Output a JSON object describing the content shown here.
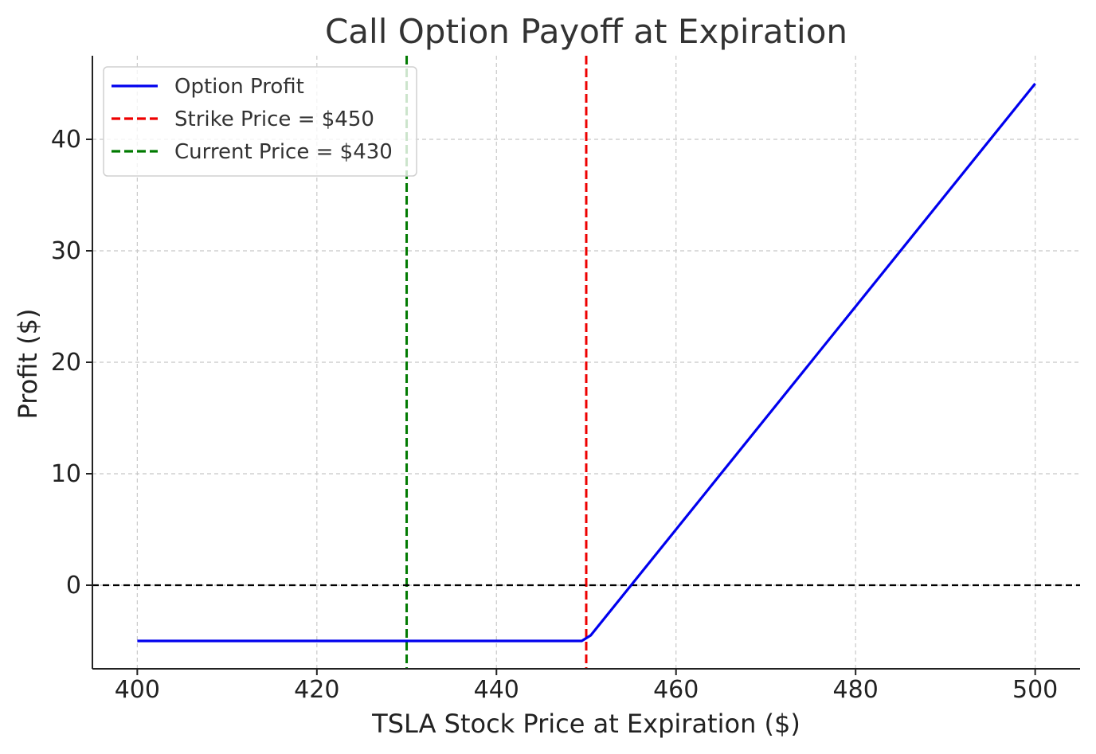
{
  "chart_data": {
    "type": "line",
    "title": "Call Option Payoff at Expiration",
    "xlabel": "TSLA Stock Price at Expiration ($)",
    "ylabel": "Profit ($)",
    "xlim": [
      395,
      505
    ],
    "ylim": [
      -7.5,
      47.5
    ],
    "xticks": [
      400,
      420,
      440,
      460,
      480,
      500
    ],
    "yticks": [
      0,
      10,
      20,
      30,
      40
    ],
    "grid": true,
    "legend_position": "top-left",
    "series": [
      {
        "name": "Option Profit",
        "color": "#0000ee",
        "style": "solid",
        "x": [
          400,
          449.5,
          450.5,
          500
        ],
        "y": [
          -5,
          -5,
          -4.5,
          45
        ]
      }
    ],
    "reference_lines": [
      {
        "name": "Strike Price = $450",
        "orientation": "vertical",
        "value": 450,
        "color": "#ee0000",
        "style": "dashed",
        "in_legend": true
      },
      {
        "name": "Current Price = $430",
        "orientation": "vertical",
        "value": 430,
        "color": "#007a00",
        "style": "dashed",
        "in_legend": true
      },
      {
        "name": "",
        "orientation": "horizontal",
        "value": 0,
        "color": "#000000",
        "style": "dashed",
        "in_legend": false
      }
    ]
  }
}
